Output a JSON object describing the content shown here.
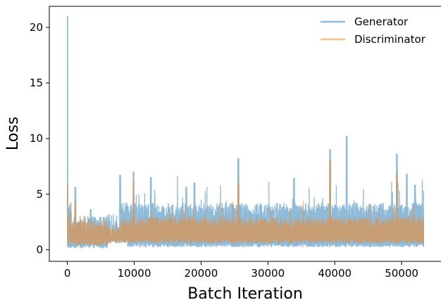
{
  "chart_data": {
    "type": "line",
    "title": "",
    "xlabel": "Batch Iteration",
    "ylabel": "Loss",
    "xlim": [
      -2700,
      56000
    ],
    "ylim": [
      -1.05,
      21.9
    ],
    "x_ticks": [
      0,
      10000,
      20000,
      30000,
      40000,
      50000
    ],
    "x_tick_labels": [
      "0",
      "10000",
      "20000",
      "30000",
      "40000",
      "50000"
    ],
    "y_ticks": [
      0,
      5,
      10,
      15,
      20
    ],
    "y_tick_labels": [
      "0",
      "5",
      "10",
      "15",
      "20"
    ],
    "grid": false,
    "legend_position": "top-right",
    "x_max_iteration": 53300,
    "series": [
      {
        "name": "Generator",
        "color": "#1f77b4",
        "alpha": 0.5,
        "baseline_low": 0.4,
        "spikes": [
          [
            0,
            21.0
          ],
          [
            1200,
            5.6
          ],
          [
            3500,
            3.6
          ],
          [
            7900,
            6.7
          ],
          [
            9900,
            7.0
          ],
          [
            12500,
            6.5
          ],
          [
            17800,
            5.6
          ],
          [
            19000,
            6.0
          ],
          [
            25600,
            8.2
          ],
          [
            33900,
            6.4
          ],
          [
            39300,
            9.0
          ],
          [
            41800,
            10.2
          ],
          [
            49300,
            8.6
          ],
          [
            50800,
            6.8
          ],
          [
            52000,
            5.8
          ]
        ]
      },
      {
        "name": "Discriminator",
        "color": "#ff7f0e",
        "alpha": 0.5,
        "baseline_low": 0.6,
        "spikes": [
          [
            0,
            6.0
          ],
          [
            1200,
            4.3
          ],
          [
            2500,
            3.0
          ],
          [
            9900,
            6.2
          ],
          [
            25600,
            6.0
          ],
          [
            39300,
            8.0
          ],
          [
            49300,
            6.8
          ]
        ]
      }
    ]
  }
}
